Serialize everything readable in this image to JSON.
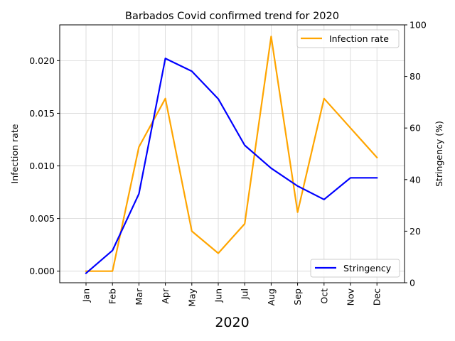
{
  "chart_data": {
    "type": "line",
    "title": "Barbados Covid confirmed trend for 2020",
    "xlabel": "2020",
    "ylabel_left": "Infection rate",
    "ylabel_right": "Stringency (%)",
    "categories": [
      "Jan",
      "Feb",
      "Mar",
      "Apr",
      "May",
      "Jun",
      "Jul",
      "Aug",
      "Sep",
      "Oct",
      "Nov",
      "Dec"
    ],
    "ylim_left": [
      -0.0011,
      0.0234
    ],
    "ylim_right": [
      0,
      100
    ],
    "yticks_left": [
      "0.000",
      "0.005",
      "0.010",
      "0.015",
      "0.020"
    ],
    "yticks_left_values": [
      0,
      0.005,
      0.01,
      0.015,
      0.02
    ],
    "yticks_right": [
      "0",
      "20",
      "40",
      "60",
      "80",
      "100"
    ],
    "yticks_right_values": [
      0,
      20,
      40,
      60,
      80,
      100
    ],
    "grid": true,
    "series": [
      {
        "name": "Infection rate",
        "axis": "left",
        "color": "#FFA500",
        "values": [
          0.0,
          0.0,
          0.0118,
          0.0164,
          0.0038,
          0.0017,
          0.0045,
          0.0223,
          0.0056,
          0.0164,
          0.0136,
          0.0108
        ],
        "legend": "top-right"
      },
      {
        "name": "Stringency",
        "axis": "right",
        "color": "#0000FF",
        "values": [
          3.7,
          12.5,
          34.5,
          87.0,
          82.0,
          71.3,
          53.3,
          44.4,
          37.5,
          32.3,
          40.7,
          40.7
        ],
        "legend": "bottom-right"
      }
    ]
  }
}
